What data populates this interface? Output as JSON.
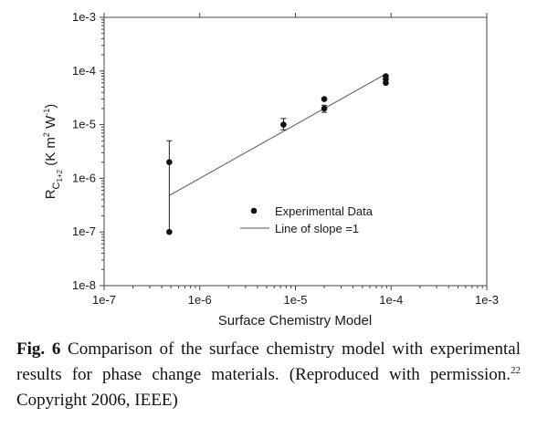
{
  "chart_data": {
    "type": "scatter",
    "xlabel": "Surface Chemistry Model",
    "ylabel": {
      "main": "R",
      "sub": "C",
      "subsub": "1+2",
      "units_open": " (K m",
      "exp1": "2",
      "units_mid": " W",
      "exp2": "-1",
      "units_close": ")"
    },
    "xscale": "log",
    "yscale": "log",
    "xlim": [
      1e-07,
      0.001
    ],
    "ylim": [
      1e-08,
      0.001
    ],
    "x_ticks": [
      1e-07,
      1e-06,
      1e-05,
      0.0001,
      0.001
    ],
    "x_tick_labels": [
      "1e-7",
      "1e-6",
      "1e-5",
      "1e-4",
      "1e-3"
    ],
    "y_ticks": [
      1e-08,
      1e-07,
      1e-06,
      1e-05,
      0.0001,
      0.001
    ],
    "y_tick_labels": [
      "1e-8",
      "1e-7",
      "1e-6",
      "1e-5",
      "1e-4",
      "1e-3"
    ],
    "grid": false,
    "legend_position": "lower-right",
    "series": [
      {
        "name": "Experimental Data",
        "kind": "scatter",
        "points": [
          {
            "x": 4.8e-07,
            "y": 2e-06,
            "err_low": 1e-07,
            "err_high": 5e-06
          },
          {
            "x": 4.8e-07,
            "y": 1e-07
          },
          {
            "x": 7.5e-06,
            "y": 1e-05,
            "err_low": 8e-06,
            "err_high": 1.3e-05
          },
          {
            "x": 2e-05,
            "y": 3e-05
          },
          {
            "x": 2e-05,
            "y": 2e-05,
            "err_low": 1.7e-05,
            "err_high": 2.3e-05
          },
          {
            "x": 8.8e-05,
            "y": 8e-05
          },
          {
            "x": 8.8e-05,
            "y": 7e-05
          },
          {
            "x": 8.8e-05,
            "y": 6e-05
          }
        ]
      },
      {
        "name": "Line of slope =1",
        "kind": "line",
        "x": [
          4.8e-07,
          8.8e-05
        ],
        "y": [
          4.8e-07,
          8.8e-05
        ]
      }
    ]
  },
  "caption": {
    "label": "Fig. 6",
    "text1": " Comparison of the surface chemistry model with experimental results for phase change materials. (Reproduced with permission.",
    "ref": "22",
    "text2": " Copyright 2006, IEEE)"
  }
}
